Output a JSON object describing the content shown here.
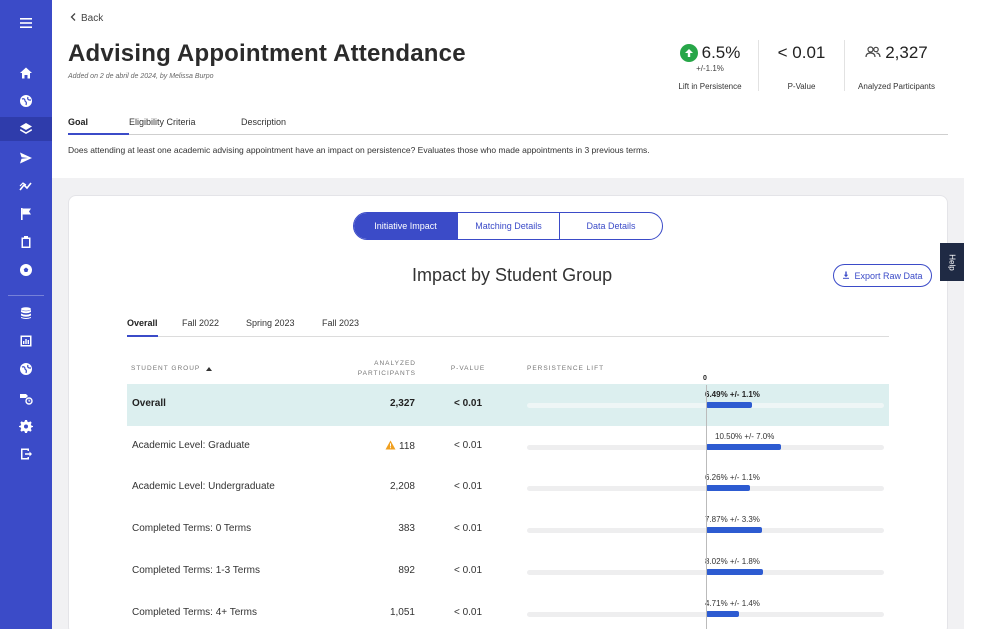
{
  "colors": {
    "sidebar": "#3b4bc8",
    "accent": "#3b4bc8",
    "bar": "#2d5bd1",
    "positive": "#27a648",
    "warning": "#f0a020",
    "highlight_row": "#dcefef"
  },
  "sidebar": {
    "icons": [
      "menu-icon",
      "home-icon",
      "globe-icon",
      "layers-icon",
      "send-icon",
      "trend-icon",
      "flag-icon",
      "clipboard-icon",
      "soccer-icon",
      "database-icon",
      "chart-box-icon",
      "globe-icon-2",
      "tools-icon",
      "gear-icon",
      "logout-icon"
    ],
    "active": "layers-icon"
  },
  "header": {
    "back_label": "Back",
    "title": "Advising Appointment Attendance",
    "subtitle": "Added on 2 de abril de 2024, by Melissa Burpo"
  },
  "stats": {
    "lift": {
      "value": "6.5%",
      "sub": "+/-1.1%",
      "label": "Lift in Persistence",
      "icon": "arrow-up-icon"
    },
    "pvalue": {
      "value": "< 0.01",
      "label": "P-Value"
    },
    "participants": {
      "value": "2,327",
      "label": "Analyzed Participants",
      "icon": "people-icon"
    }
  },
  "tabs": [
    {
      "label": "Goal",
      "active": true
    },
    {
      "label": "Eligibility Criteria",
      "active": false
    },
    {
      "label": "Description",
      "active": false
    }
  ],
  "goal_text": "Does attending at least one academic advising appointment have an impact on persistence? Evaluates those who made appointments in 3 previous terms.",
  "segments": [
    "Initiative Impact",
    "Matching Details",
    "Data Details"
  ],
  "impact": {
    "title": "Impact by Student Group",
    "export_label": "Export Raw Data",
    "help_label": "Help",
    "term_tabs": [
      "Overall",
      "Fall 2022",
      "Spring 2023",
      "Fall 2023"
    ],
    "headers": {
      "group": "Student Group",
      "participants": "Analyzed Participants",
      "pvalue": "P-Value",
      "lift": "Persistence Lift"
    },
    "zero_label": "0"
  },
  "rows": [
    {
      "group": "Overall",
      "participants": "2,327",
      "pvalue": "< 0.01",
      "lift_pct": 6.49,
      "lift_label": "6.49% +/- 1.1%",
      "warning": false
    },
    {
      "group": "Academic Level: Graduate",
      "participants": "118",
      "pvalue": "< 0.01",
      "lift_pct": 10.5,
      "lift_label": "10.50% +/- 7.0%",
      "warning": true
    },
    {
      "group": "Academic Level: Undergraduate",
      "participants": "2,208",
      "pvalue": "< 0.01",
      "lift_pct": 6.26,
      "lift_label": "6.26% +/- 1.1%",
      "warning": false
    },
    {
      "group": "Completed Terms: 0 Terms",
      "participants": "383",
      "pvalue": "< 0.01",
      "lift_pct": 7.87,
      "lift_label": "7.87% +/- 3.3%",
      "warning": false
    },
    {
      "group": "Completed Terms: 1-3 Terms",
      "participants": "892",
      "pvalue": "< 0.01",
      "lift_pct": 8.02,
      "lift_label": "8.02% +/- 1.8%",
      "warning": false
    },
    {
      "group": "Completed Terms: 4+ Terms",
      "participants": "1,051",
      "pvalue": "< 0.01",
      "lift_pct": 4.71,
      "lift_label": "4.71% +/- 1.4%",
      "warning": false
    }
  ]
}
